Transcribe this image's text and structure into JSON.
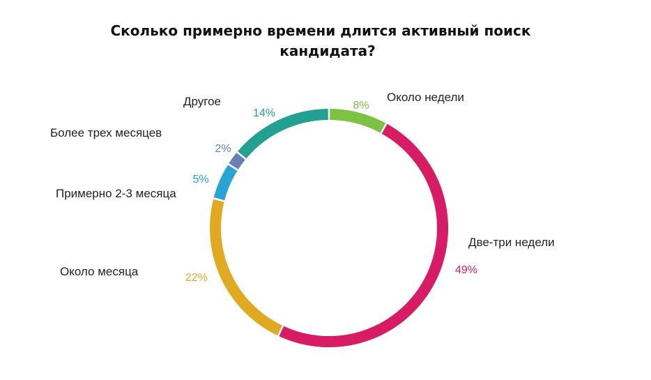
{
  "title_line1": "Сколько примерно времени длится активный поиск",
  "title_line2": "кандидата?",
  "chart_data": {
    "type": "pie",
    "variant": "donut",
    "title": "Сколько примерно времени длится активный поиск кандидата?",
    "unit": "%",
    "slices": [
      {
        "label": "Около недели",
        "value": 8,
        "value_label": "8%",
        "color": "#7dc242"
      },
      {
        "label": "Две-три недели",
        "value": 49,
        "value_label": "49%",
        "color": "#d81b65"
      },
      {
        "label": "Около месяца",
        "value": 22,
        "value_label": "22%",
        "color": "#e0a91f"
      },
      {
        "label": "Примерно 2-3 месяца",
        "value": 5,
        "value_label": "5%",
        "color": "#2aa4d6"
      },
      {
        "label": "Более трех месяцев",
        "value": 2,
        "value_label": "2%",
        "color": "#6a80b4"
      },
      {
        "label": "Другое",
        "value": 14,
        "value_label": "14%",
        "color": "#22a091"
      }
    ]
  }
}
